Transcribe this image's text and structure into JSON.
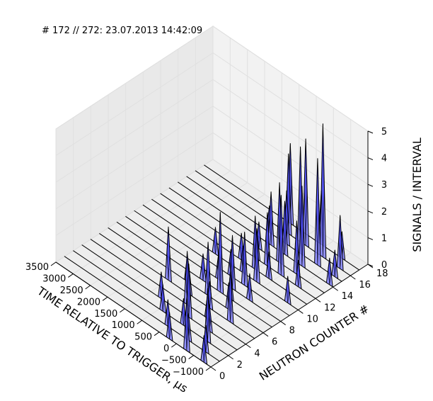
{
  "figure": {
    "title": "# 172 // 272: 23.07.2013 14:42:09"
  },
  "chart_data": {
    "type": "3d-waterfall",
    "title": "# 172 // 272: 23.07.2013 14:42:09",
    "xlabel": "TIME RELATIVE TO TRIGGER, µs",
    "ylabel": "NEUTRON COUNTER #",
    "zlabel": "SIGNALS / INTERVAL",
    "xlim": [
      -1000,
      3500
    ],
    "ylim": [
      0,
      18
    ],
    "zlim": [
      0,
      5
    ],
    "x_ticks": [
      "−1000",
      "−500",
      "0",
      "500",
      "1000",
      "1500",
      "2000",
      "2500",
      "3000",
      "3500"
    ],
    "y_ticks": [
      "0",
      "2",
      "4",
      "6",
      "8",
      "10",
      "12",
      "14",
      "16",
      "18"
    ],
    "z_ticks": [
      "0",
      "1",
      "2",
      "3",
      "4",
      "5"
    ],
    "grid": true,
    "legend": "none",
    "colors": {
      "face": "#8080ff",
      "face_dark": "#2020e0",
      "edge": "#000000",
      "pane": "#f2f2f2",
      "grid": "#e0e0e0"
    },
    "counters": [
      0,
      1,
      2,
      3,
      4,
      5,
      6,
      7,
      8,
      9,
      10,
      11,
      12,
      13,
      14,
      15,
      16,
      17
    ],
    "peaks": [
      {
        "counter": 0,
        "time": -800,
        "value": 1
      },
      {
        "counter": 0,
        "time": -300,
        "value": 2
      },
      {
        "counter": 0,
        "time": 200,
        "value": 1
      },
      {
        "counter": 1,
        "time": -600,
        "value": 1
      },
      {
        "counter": 1,
        "time": -100,
        "value": 1
      },
      {
        "counter": 1,
        "time": 500,
        "value": 1
      },
      {
        "counter": 2,
        "time": -400,
        "value": 2
      },
      {
        "counter": 2,
        "time": 300,
        "value": 1
      },
      {
        "counter": 2,
        "time": 900,
        "value": 1
      },
      {
        "counter": 3,
        "time": -200,
        "value": 1
      },
      {
        "counter": 3,
        "time": 400,
        "value": 2
      },
      {
        "counter": 3,
        "time": 1200,
        "value": 1
      },
      {
        "counter": 4,
        "time": 100,
        "value": 1
      },
      {
        "counter": 4,
        "time": 700,
        "value": 2
      },
      {
        "counter": 5,
        "time": -300,
        "value": 2
      },
      {
        "counter": 5,
        "time": 300,
        "value": 1
      },
      {
        "counter": 5,
        "time": 900,
        "value": 1
      },
      {
        "counter": 5,
        "time": 1500,
        "value": 2
      },
      {
        "counter": 6,
        "time": 0,
        "value": 1
      },
      {
        "counter": 6,
        "time": 600,
        "value": 2
      },
      {
        "counter": 6,
        "time": 1200,
        "value": 1
      },
      {
        "counter": 7,
        "time": 200,
        "value": 1
      },
      {
        "counter": 7,
        "time": 500,
        "value": 3
      },
      {
        "counter": 7,
        "time": 1000,
        "value": 1
      },
      {
        "counter": 8,
        "time": -100,
        "value": 1
      },
      {
        "counter": 8,
        "time": 400,
        "value": 2
      },
      {
        "counter": 8,
        "time": 800,
        "value": 1
      },
      {
        "counter": 9,
        "time": 300,
        "value": 2
      },
      {
        "counter": 9,
        "time": 700,
        "value": 1
      },
      {
        "counter": 10,
        "time": -700,
        "value": 1
      },
      {
        "counter": 10,
        "time": 200,
        "value": 2
      },
      {
        "counter": 10,
        "time": 600,
        "value": 1
      },
      {
        "counter": 10,
        "time": 1400,
        "value": 1
      },
      {
        "counter": 11,
        "time": 100,
        "value": 1
      },
      {
        "counter": 11,
        "time": 500,
        "value": 2
      },
      {
        "counter": 11,
        "time": 900,
        "value": 1
      },
      {
        "counter": 12,
        "time": -500,
        "value": 1
      },
      {
        "counter": 12,
        "time": 0,
        "value": 3
      },
      {
        "counter": 12,
        "time": 400,
        "value": 2
      },
      {
        "counter": 12,
        "time": 700,
        "value": 1
      },
      {
        "counter": 13,
        "time": -200,
        "value": 2
      },
      {
        "counter": 13,
        "time": 300,
        "value": 3
      },
      {
        "counter": 13,
        "time": 900,
        "value": 1
      },
      {
        "counter": 14,
        "time": -900,
        "value": 1
      },
      {
        "counter": 14,
        "time": -100,
        "value": 3
      },
      {
        "counter": 14,
        "time": 400,
        "value": 2
      },
      {
        "counter": 14,
        "time": 800,
        "value": 2
      },
      {
        "counter": 15,
        "time": -800,
        "value": 1
      },
      {
        "counter": 15,
        "time": -300,
        "value": 4
      },
      {
        "counter": 15,
        "time": 200,
        "value": 4
      },
      {
        "counter": 15,
        "time": 600,
        "value": 2
      },
      {
        "counter": 15,
        "time": 1100,
        "value": 1
      },
      {
        "counter": 16,
        "time": -700,
        "value": 2
      },
      {
        "counter": 16,
        "time": -200,
        "value": 5
      },
      {
        "counter": 16,
        "time": 300,
        "value": 4
      },
      {
        "counter": 16,
        "time": 800,
        "value": 3
      },
      {
        "counter": 17,
        "time": -500,
        "value": 1
      },
      {
        "counter": 17,
        "time": 100,
        "value": 2
      },
      {
        "counter": 17,
        "time": 1000,
        "value": 3
      }
    ]
  }
}
